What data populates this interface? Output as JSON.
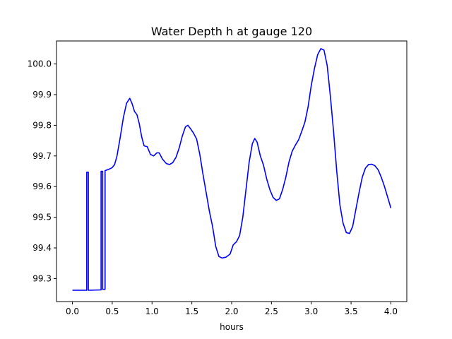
{
  "chart_data": {
    "type": "line",
    "title": "Water Depth h at gauge 120",
    "xlabel": "hours",
    "ylabel": "",
    "xlim": [
      -0.2,
      4.2
    ],
    "ylim": [
      99.225,
      100.075
    ],
    "grid": false,
    "legend": "none",
    "x_ticks": [
      "0.0",
      "0.5",
      "1.0",
      "1.5",
      "2.0",
      "2.5",
      "3.0",
      "3.5",
      "4.0"
    ],
    "y_ticks": [
      "99.3",
      "99.4",
      "99.5",
      "99.6",
      "99.7",
      "99.8",
      "99.9",
      "100.0"
    ],
    "colors": {
      "line": "#0000ff",
      "axes": "#000000",
      "background": "#ffffff"
    },
    "series": [
      {
        "points": [
          [
            0.0,
            99.262
          ],
          [
            0.18,
            99.262
          ],
          [
            0.18,
            99.647
          ],
          [
            0.2,
            99.647
          ],
          [
            0.2,
            99.262
          ],
          [
            0.35,
            99.263
          ],
          [
            0.36,
            99.263
          ],
          [
            0.36,
            99.65
          ],
          [
            0.38,
            99.65
          ],
          [
            0.38,
            99.265
          ],
          [
            0.41,
            99.265
          ],
          [
            0.41,
            99.652
          ],
          [
            0.44,
            99.655
          ],
          [
            0.47,
            99.658
          ],
          [
            0.5,
            99.662
          ],
          [
            0.53,
            99.672
          ],
          [
            0.56,
            99.7
          ],
          [
            0.6,
            99.76
          ],
          [
            0.64,
            99.825
          ],
          [
            0.68,
            99.872
          ],
          [
            0.72,
            99.888
          ],
          [
            0.75,
            99.87
          ],
          [
            0.78,
            99.845
          ],
          [
            0.81,
            99.835
          ],
          [
            0.84,
            99.805
          ],
          [
            0.87,
            99.762
          ],
          [
            0.9,
            99.733
          ],
          [
            0.94,
            99.73
          ],
          [
            0.98,
            99.705
          ],
          [
            1.02,
            99.7
          ],
          [
            1.06,
            99.71
          ],
          [
            1.09,
            99.71
          ],
          [
            1.13,
            99.69
          ],
          [
            1.18,
            99.675
          ],
          [
            1.22,
            99.672
          ],
          [
            1.26,
            99.678
          ],
          [
            1.3,
            99.695
          ],
          [
            1.34,
            99.725
          ],
          [
            1.38,
            99.765
          ],
          [
            1.42,
            99.795
          ],
          [
            1.45,
            99.8
          ],
          [
            1.48,
            99.79
          ],
          [
            1.52,
            99.775
          ],
          [
            1.56,
            99.755
          ],
          [
            1.6,
            99.705
          ],
          [
            1.64,
            99.64
          ],
          [
            1.68,
            99.58
          ],
          [
            1.72,
            99.52
          ],
          [
            1.76,
            99.47
          ],
          [
            1.8,
            99.405
          ],
          [
            1.84,
            99.372
          ],
          [
            1.88,
            99.367
          ],
          [
            1.93,
            99.37
          ],
          [
            1.98,
            99.38
          ],
          [
            2.02,
            99.41
          ],
          [
            2.06,
            99.42
          ],
          [
            2.1,
            99.44
          ],
          [
            2.14,
            99.5
          ],
          [
            2.18,
            99.59
          ],
          [
            2.22,
            99.68
          ],
          [
            2.26,
            99.74
          ],
          [
            2.29,
            99.757
          ],
          [
            2.32,
            99.745
          ],
          [
            2.36,
            99.7
          ],
          [
            2.4,
            99.67
          ],
          [
            2.44,
            99.625
          ],
          [
            2.48,
            99.59
          ],
          [
            2.52,
            99.565
          ],
          [
            2.56,
            99.555
          ],
          [
            2.6,
            99.56
          ],
          [
            2.64,
            99.59
          ],
          [
            2.68,
            99.63
          ],
          [
            2.72,
            99.68
          ],
          [
            2.76,
            99.715
          ],
          [
            2.8,
            99.735
          ],
          [
            2.84,
            99.752
          ],
          [
            2.88,
            99.78
          ],
          [
            2.92,
            99.81
          ],
          [
            2.96,
            99.86
          ],
          [
            3.0,
            99.93
          ],
          [
            3.04,
            99.985
          ],
          [
            3.08,
            100.03
          ],
          [
            3.12,
            100.05
          ],
          [
            3.16,
            100.045
          ],
          [
            3.2,
            99.995
          ],
          [
            3.24,
            99.895
          ],
          [
            3.28,
            99.78
          ],
          [
            3.32,
            99.65
          ],
          [
            3.36,
            99.54
          ],
          [
            3.4,
            99.48
          ],
          [
            3.44,
            99.45
          ],
          [
            3.48,
            99.447
          ],
          [
            3.52,
            99.47
          ],
          [
            3.56,
            99.525
          ],
          [
            3.6,
            99.58
          ],
          [
            3.64,
            99.63
          ],
          [
            3.68,
            99.66
          ],
          [
            3.72,
            99.672
          ],
          [
            3.76,
            99.673
          ],
          [
            3.8,
            99.668
          ],
          [
            3.84,
            99.655
          ],
          [
            3.88,
            99.63
          ],
          [
            3.92,
            99.6
          ],
          [
            3.96,
            99.565
          ],
          [
            4.0,
            99.53
          ]
        ]
      }
    ]
  }
}
